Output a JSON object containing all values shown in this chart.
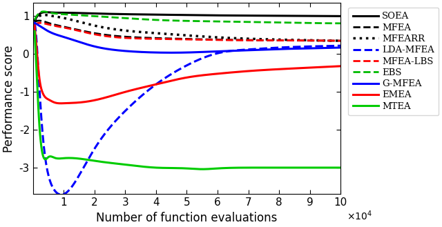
{
  "xlabel": "Number of function evaluations",
  "ylabel": "Performance score",
  "xlim": [
    0,
    100000
  ],
  "ylim": [
    -3.7,
    1.35
  ],
  "xticks": [
    10000,
    20000,
    30000,
    40000,
    50000,
    60000,
    70000,
    80000,
    90000,
    100000
  ],
  "xtick_labels": [
    "1",
    "2",
    "3",
    "4",
    "5",
    "6",
    "7",
    "8",
    "9",
    "10"
  ],
  "figsize": [
    6.4,
    3.29
  ],
  "dpi": 100,
  "series": [
    {
      "name": "SOEA",
      "color": "#000000",
      "linestyle": "solid",
      "linewidth": 2.2,
      "x": [
        500,
        2000,
        5000,
        10000,
        20000,
        40000,
        60000,
        80000,
        100000
      ],
      "y": [
        0.88,
        1.05,
        1.1,
        1.09,
        1.07,
        1.04,
        1.02,
        1.01,
        1.0
      ]
    },
    {
      "name": "MFEA",
      "color": "#000000",
      "linestyle": "dashed",
      "linewidth": 2.0,
      "x": [
        500,
        2000,
        5000,
        10000,
        20000,
        40000,
        60000,
        80000,
        100000
      ],
      "y": [
        0.85,
        0.88,
        0.82,
        0.72,
        0.55,
        0.42,
        0.38,
        0.36,
        0.35
      ]
    },
    {
      "name": "MFEARR",
      "color": "#000000",
      "linestyle": "dotted",
      "linewidth": 2.5,
      "x": [
        500,
        2000,
        5000,
        10000,
        20000,
        40000,
        60000,
        80000,
        100000
      ],
      "y": [
        0.88,
        1.0,
        1.02,
        0.95,
        0.75,
        0.55,
        0.44,
        0.38,
        0.35
      ]
    },
    {
      "name": "LDA-MFEA",
      "color": "#0000FF",
      "linestyle": "dashed",
      "linewidth": 2.2,
      "x": [
        500,
        1000,
        2000,
        3000,
        5000,
        7000,
        10000,
        15000,
        20000,
        30000,
        40000,
        50000,
        60000,
        70000,
        80000,
        90000,
        100000
      ],
      "y": [
        0.8,
        0.5,
        -0.8,
        -2.0,
        -3.2,
        -3.6,
        -3.7,
        -3.2,
        -2.5,
        -1.5,
        -0.8,
        -0.3,
        0.02,
        0.12,
        0.17,
        0.2,
        0.22
      ]
    },
    {
      "name": "MFEA-LBS",
      "color": "#FF0000",
      "linestyle": "dashed",
      "linewidth": 2.0,
      "x": [
        500,
        2000,
        5000,
        10000,
        20000,
        40000,
        60000,
        80000,
        100000
      ],
      "y": [
        0.78,
        0.82,
        0.78,
        0.7,
        0.52,
        0.4,
        0.37,
        0.36,
        0.35
      ]
    },
    {
      "name": "EBS",
      "color": "#00BB00",
      "linestyle": "dashed",
      "linewidth": 2.0,
      "x": [
        500,
        2000,
        5000,
        10000,
        20000,
        40000,
        60000,
        80000,
        100000
      ],
      "y": [
        0.9,
        1.08,
        1.1,
        1.05,
        1.0,
        0.9,
        0.86,
        0.83,
        0.81
      ]
    },
    {
      "name": "G-MFEA",
      "color": "#0000FF",
      "linestyle": "solid",
      "linewidth": 2.2,
      "x": [
        500,
        2000,
        5000,
        10000,
        20000,
        30000,
        40000,
        50000,
        60000,
        70000,
        80000,
        90000,
        100000
      ],
      "y": [
        0.82,
        0.75,
        0.6,
        0.45,
        0.2,
        0.08,
        0.04,
        0.04,
        0.07,
        0.1,
        0.13,
        0.15,
        0.17
      ]
    },
    {
      "name": "EMEA",
      "color": "#FF0000",
      "linestyle": "solid",
      "linewidth": 2.2,
      "x": [
        500,
        1000,
        2000,
        3000,
        5000,
        7000,
        10000,
        15000,
        20000,
        30000,
        40000,
        50000,
        60000,
        70000,
        80000,
        90000,
        100000
      ],
      "y": [
        0.75,
        0.3,
        -0.6,
        -1.0,
        -1.2,
        -1.28,
        -1.3,
        -1.28,
        -1.22,
        -1.0,
        -0.8,
        -0.62,
        -0.52,
        -0.45,
        -0.4,
        -0.36,
        -0.32
      ]
    },
    {
      "name": "MTEA",
      "color": "#00CC00",
      "linestyle": "solid",
      "linewidth": 2.2,
      "x": [
        500,
        1000,
        2000,
        3000,
        5000,
        7000,
        10000,
        20000,
        30000,
        40000,
        50000,
        55000,
        60000,
        70000,
        80000,
        90000,
        100000
      ],
      "y": [
        0.6,
        -0.2,
        -1.8,
        -2.6,
        -2.72,
        -2.74,
        -2.75,
        -2.82,
        -2.92,
        -3.0,
        -3.02,
        -3.04,
        -3.02,
        -3.0,
        -3.0,
        -3.0,
        -3.0
      ]
    }
  ]
}
